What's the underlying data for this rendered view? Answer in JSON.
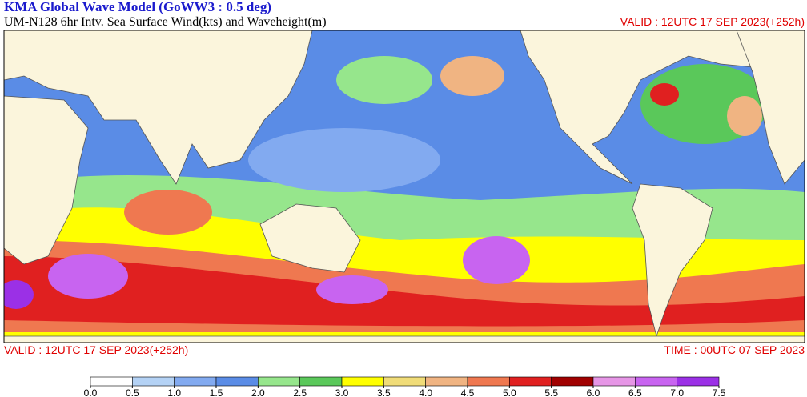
{
  "header": {
    "title": "KMA  Global Wave Model (GoWW3 : 0.5 deg)",
    "subtitle": "UM-N128  6hr Intv. Sea Surface Wind(kts) and Waveheight(m)",
    "valid_top": "VALID : 12UTC 17 SEP 2023(+252h)"
  },
  "footer": {
    "valid": "VALID : 12UTC 17 SEP 2023(+252h)",
    "time": "TIME : 00UTC 07 SEP 2023"
  },
  "colorbar": {
    "ticks": [
      {
        "value": 0,
        "label": "0.0"
      },
      {
        "value": 0.5,
        "label": "0.5"
      },
      {
        "value": 1,
        "label": "1.0"
      },
      {
        "value": 1.5,
        "label": "1.5"
      },
      {
        "value": 2,
        "label": "2.0"
      },
      {
        "value": 2.5,
        "label": "2.5"
      },
      {
        "value": 3,
        "label": "3.0"
      },
      {
        "value": 3.5,
        "label": "3.5"
      },
      {
        "value": 4,
        "label": "4.0"
      },
      {
        "value": 4.5,
        "label": "4.5"
      },
      {
        "value": 5,
        "label": "5.0"
      },
      {
        "value": 5.5,
        "label": "5.5"
      },
      {
        "value": 6,
        "label": "6.0"
      },
      {
        "value": 6.5,
        "label": "6.5"
      },
      {
        "value": 7,
        "label": "7.0"
      },
      {
        "value": 7.5,
        "label": "7.5"
      }
    ],
    "colors": [
      "#ffffff",
      "#b4d2f5",
      "#82aaf0",
      "#5a8ce6",
      "#96e68c",
      "#5ac85a",
      "#ffff00",
      "#f0dc78",
      "#f0b482",
      "#ef7850",
      "#e02020",
      "#a00000",
      "#e696e6",
      "#c864f0",
      "#9b30e6"
    ]
  }
}
